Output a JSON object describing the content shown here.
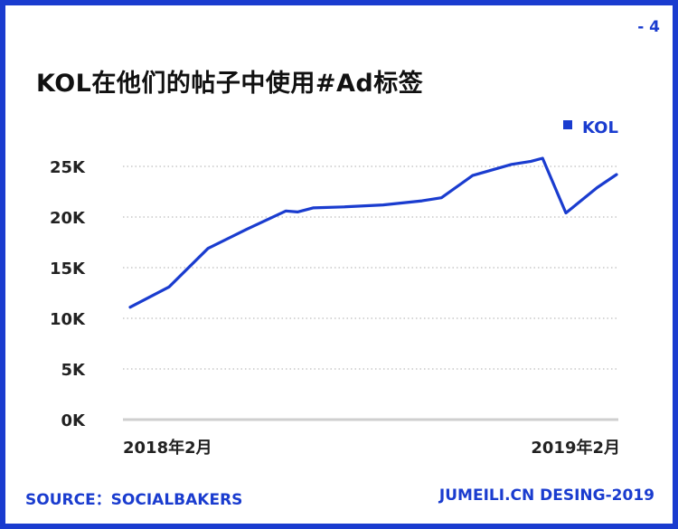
{
  "page_number": "- 4",
  "title": "KOL在他们的帖子中使用#Ad标签",
  "source": "SOURCE：SOCIALBAKERS",
  "credit": "JUMEILI.CN DESING-2019",
  "colors": {
    "accent": "#1a3ccf",
    "line": "#1a3ccf",
    "grid": "#bdbdbd"
  },
  "chart_data": {
    "type": "line",
    "title": "KOL在他们的帖子中使用#Ad标签",
    "xlabel": "",
    "ylabel": "",
    "legend_position": "top-right",
    "grid": true,
    "ylim": [
      0,
      25000
    ],
    "yticks": [
      0,
      5000,
      10000,
      15000,
      20000,
      25000
    ],
    "ytick_labels": [
      "0K",
      "5K",
      "10K",
      "15K",
      "20K",
      "25K"
    ],
    "x_tick_labels": [
      "2018年2月",
      "2019年2月"
    ],
    "x_tick_index": [
      0,
      12
    ],
    "series": [
      {
        "name": "KOL",
        "x": [
          0,
          1,
          2,
          3,
          4,
          4.3,
          4.7,
          5.5,
          6.5,
          7.5,
          8,
          8.8,
          9.8,
          10.3,
          10.6,
          11.2,
          12,
          12.5
        ],
        "values": [
          11100,
          13100,
          16900,
          18800,
          20600,
          20500,
          20900,
          21000,
          21200,
          21600,
          21900,
          24100,
          25200,
          25500,
          25800,
          20400,
          22900,
          24200
        ]
      }
    ]
  }
}
